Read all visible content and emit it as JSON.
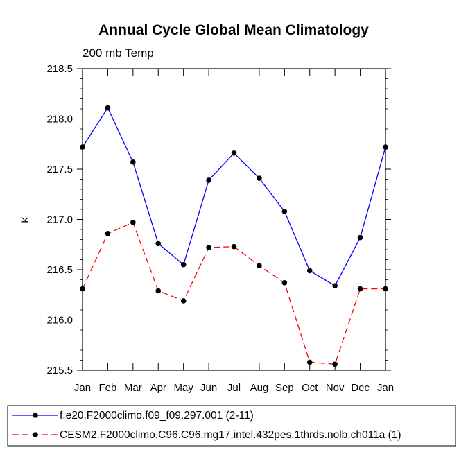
{
  "chart_data": {
    "type": "line",
    "title": "Annual Cycle Global Mean Climatology",
    "subtitle": "200 mb Temp",
    "xlabel": "",
    "ylabel": "K",
    "categories": [
      "Jan",
      "Feb",
      "Mar",
      "Apr",
      "May",
      "Jun",
      "Jul",
      "Aug",
      "Sep",
      "Oct",
      "Nov",
      "Dec",
      "Jan"
    ],
    "ylim": [
      215.5,
      218.5
    ],
    "yticks": [
      "215.5",
      "216.0",
      "216.5",
      "217.0",
      "217.5",
      "218.0",
      "218.5"
    ],
    "grid": false,
    "legend_position": "bottom",
    "series": [
      {
        "name": "f.e20.F2000climo.f09_f09.297.001 (2-11)",
        "color": "#0000ff",
        "line_style": "solid",
        "marker": "circle",
        "values": [
          217.72,
          218.11,
          217.57,
          216.76,
          216.55,
          217.39,
          217.66,
          217.41,
          217.08,
          216.49,
          216.34,
          216.82,
          217.72
        ]
      },
      {
        "name": "CESM2.F2000climo.C96.C96.mg17.intel.432pes.1thrds.nolb.ch011a (1)",
        "color": "#ff0000",
        "line_style": "dashed",
        "marker": "circle",
        "values": [
          216.31,
          216.86,
          216.97,
          216.29,
          216.19,
          216.72,
          216.73,
          216.54,
          216.37,
          215.58,
          215.56,
          216.31,
          216.31
        ]
      }
    ]
  }
}
